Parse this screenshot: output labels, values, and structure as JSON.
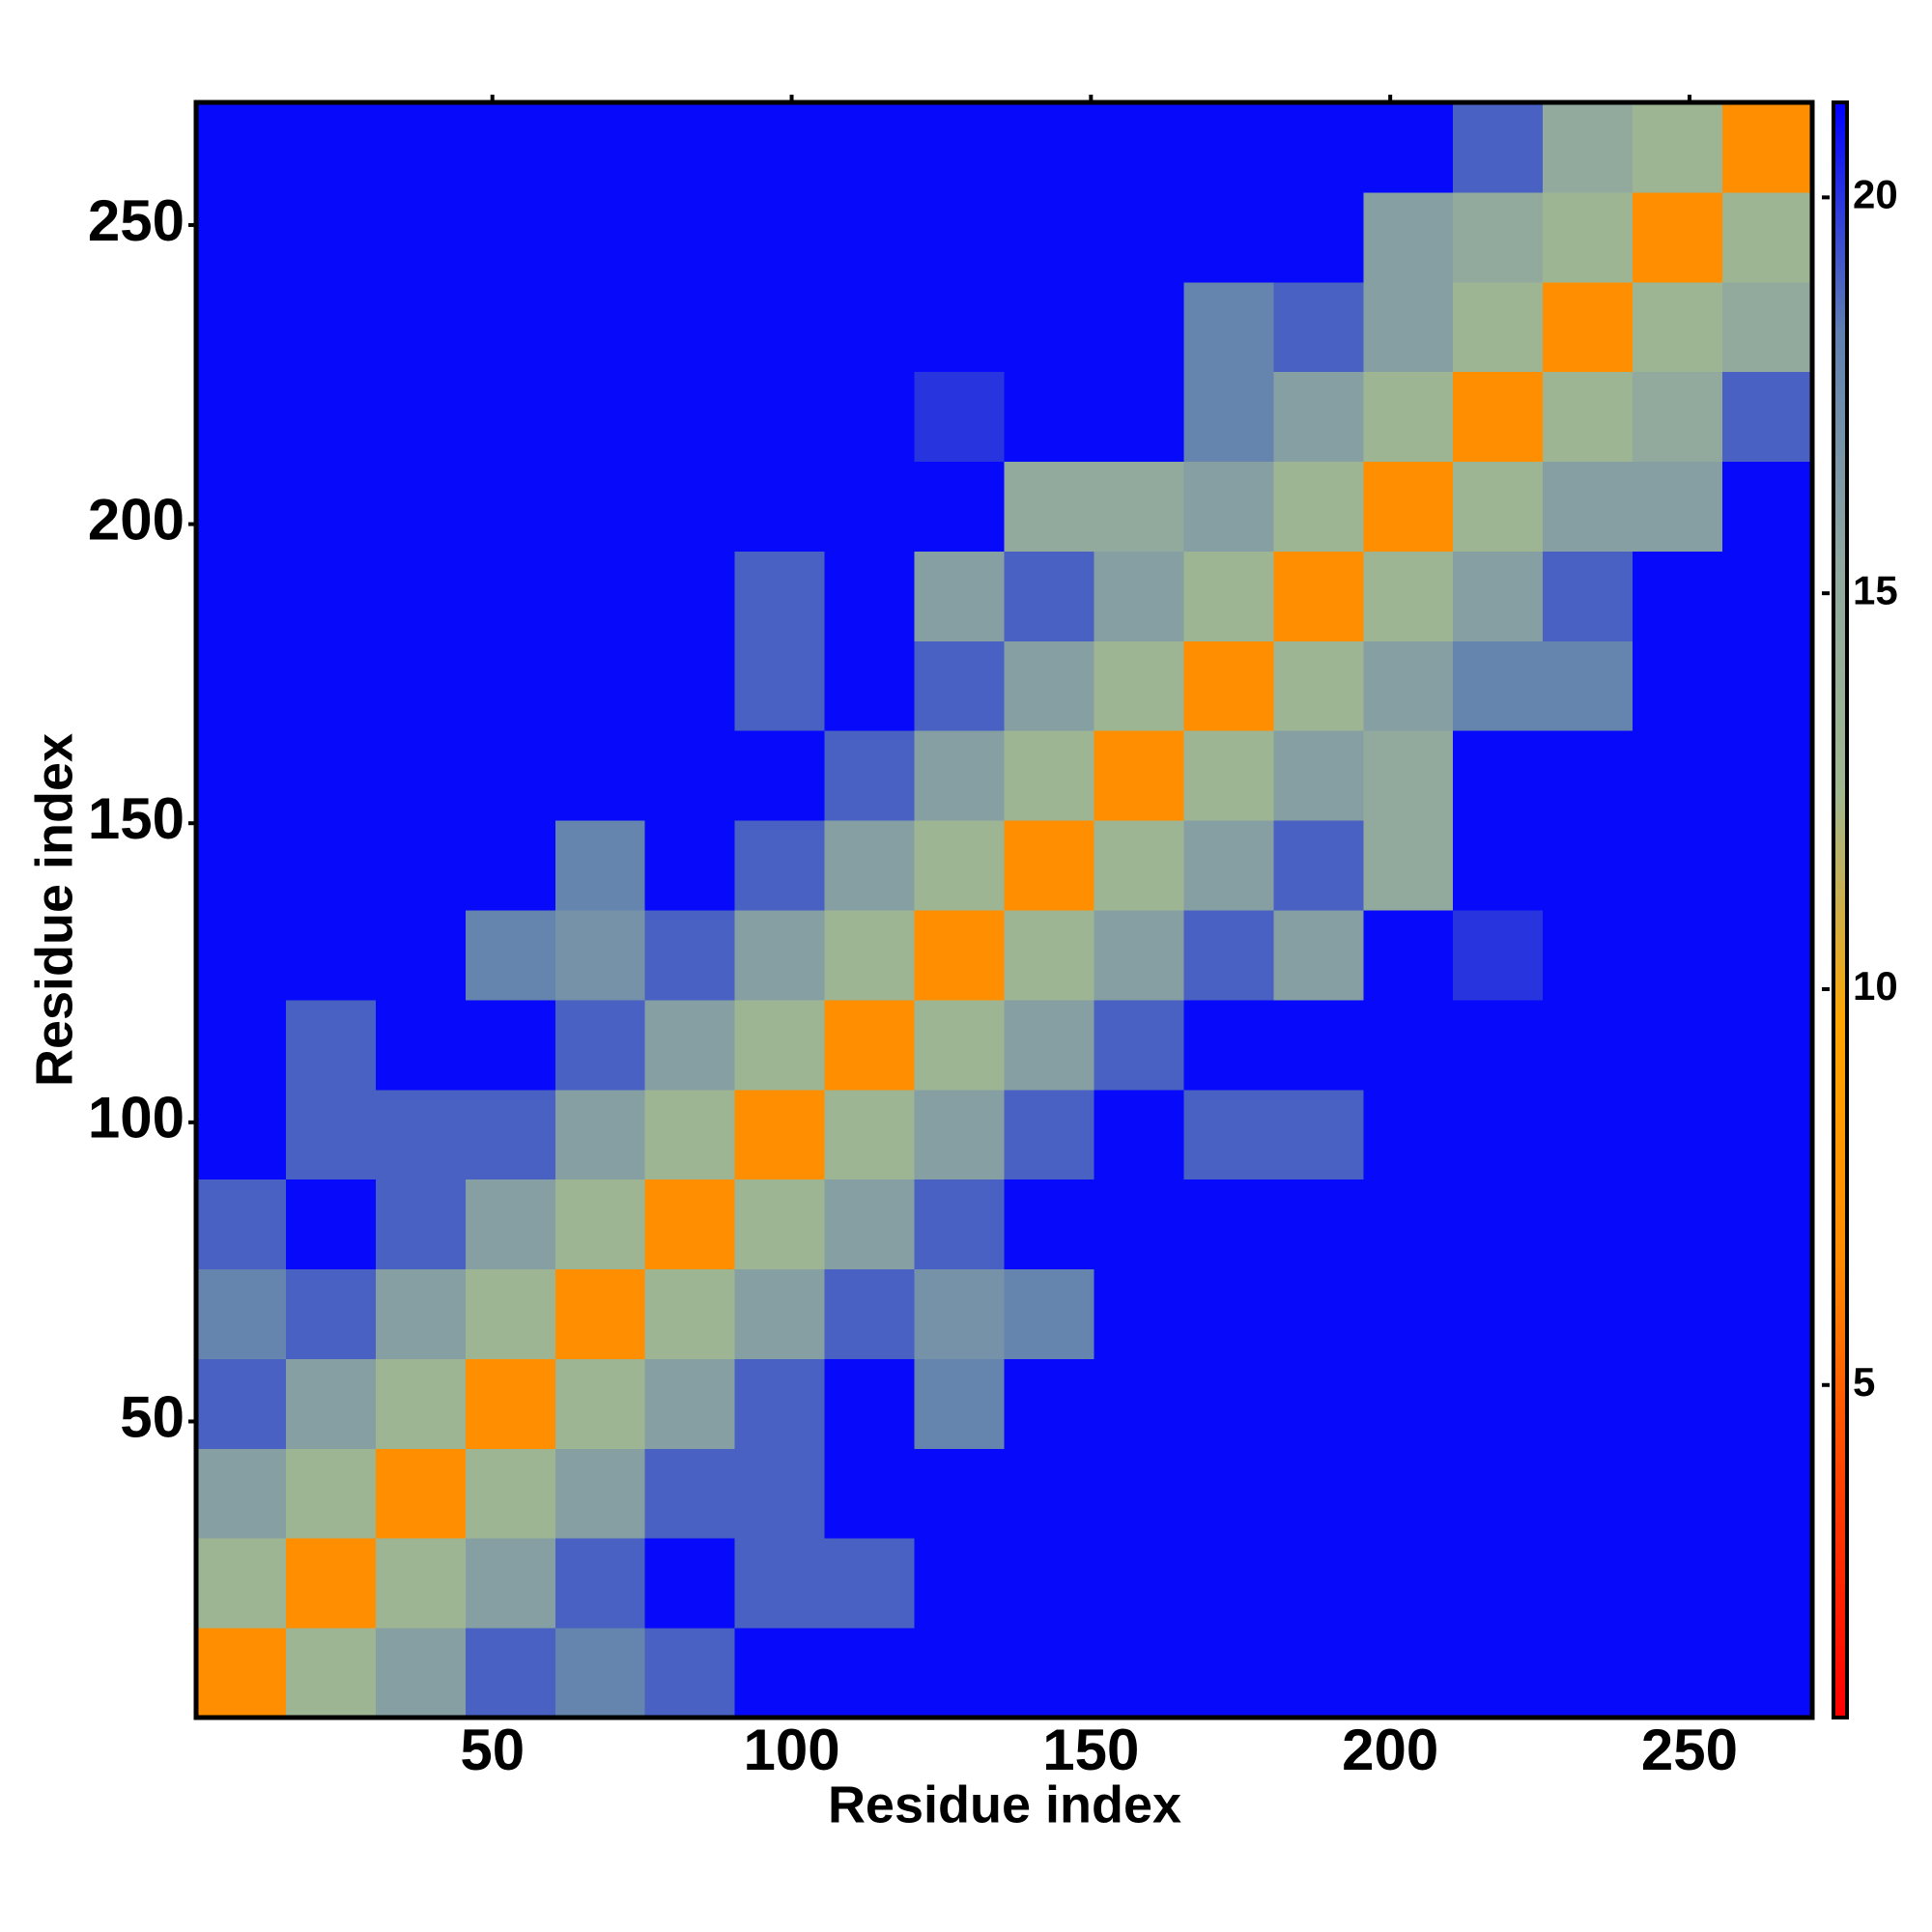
{
  "chart_data": {
    "type": "heatmap",
    "xlabel": "Residue index",
    "ylabel": "Residue index",
    "xbins": [
      0.5,
      15.5,
      30.5,
      45.5,
      60.5,
      75.5,
      90.5,
      105.5,
      120.5,
      135.5,
      150.5,
      165.5,
      180.5,
      195.5,
      210.5,
      225.5,
      240.5,
      255.5,
      270.5
    ],
    "ybins": [
      0.5,
      15.5,
      30.5,
      45.5,
      60.5,
      75.5,
      90.5,
      105.5,
      120.5,
      135.5,
      150.5,
      165.5,
      180.5,
      195.5,
      210.5,
      225.5,
      240.5,
      255.5,
      270.5
    ],
    "xlim": [
      0.5,
      270.5
    ],
    "ylim": [
      0.5,
      270.5
    ],
    "xticks": [
      50,
      100,
      150,
      200,
      250
    ],
    "yticks": [
      50,
      100,
      150,
      200,
      250
    ],
    "clim": [
      0.8,
      21.2
    ],
    "cticks": [
      5,
      10,
      15,
      20
    ],
    "colors": [
      "#ff0000",
      "#ff4000",
      "#ff8c00",
      "#ffa500",
      "#a0b890",
      "#90a8a0",
      "#6080b0",
      "#0000ff"
    ],
    "z": [
      [
        7,
        13,
        16,
        19,
        18,
        19,
        21,
        21,
        21,
        21,
        21,
        21,
        21,
        21,
        21,
        21,
        21,
        21
      ],
      [
        13,
        7,
        13,
        16,
        19,
        21,
        19,
        19,
        21,
        21,
        21,
        21,
        21,
        21,
        21,
        21,
        21,
        21
      ],
      [
        16,
        13,
        7,
        13,
        16,
        19,
        19,
        21,
        21,
        21,
        21,
        21,
        21,
        21,
        21,
        21,
        21,
        21
      ],
      [
        19,
        16,
        13,
        7,
        13,
        16,
        19,
        21,
        18,
        21,
        21,
        21,
        21,
        21,
        21,
        21,
        21,
        21
      ],
      [
        18,
        19,
        16,
        13,
        7,
        13,
        16,
        19,
        17,
        18,
        21,
        21,
        21,
        21,
        21,
        21,
        21,
        21
      ],
      [
        19,
        21,
        19,
        16,
        13,
        7,
        13,
        16,
        19,
        21,
        21,
        21,
        21,
        21,
        21,
        21,
        21,
        21
      ],
      [
        21,
        19,
        19,
        19,
        16,
        13,
        7,
        13,
        16,
        19,
        21,
        19,
        19,
        21,
        21,
        21,
        21,
        21
      ],
      [
        21,
        19,
        21,
        21,
        19,
        16,
        13,
        7,
        13,
        16,
        19,
        21,
        21,
        21,
        21,
        21,
        21,
        21
      ],
      [
        21,
        21,
        21,
        18,
        17,
        19,
        16,
        13,
        7,
        13,
        16,
        19,
        16,
        21,
        20,
        21,
        21,
        21
      ],
      [
        21,
        21,
        21,
        21,
        18,
        21,
        19,
        16,
        13,
        7,
        13,
        16,
        19,
        15,
        21,
        21,
        21,
        21
      ],
      [
        21,
        21,
        21,
        21,
        21,
        21,
        21,
        19,
        16,
        13,
        7,
        13,
        16,
        15,
        21,
        21,
        21,
        21
      ],
      [
        21,
        21,
        21,
        21,
        21,
        21,
        19,
        21,
        19,
        16,
        13,
        7,
        13,
        16,
        18,
        18,
        21,
        21
      ],
      [
        21,
        21,
        21,
        21,
        21,
        21,
        19,
        21,
        16,
        19,
        16,
        13,
        7,
        13,
        16,
        19,
        21,
        21
      ],
      [
        21,
        21,
        21,
        21,
        21,
        21,
        21,
        21,
        21,
        15,
        15,
        16,
        13,
        7,
        13,
        16,
        16,
        21
      ],
      [
        21,
        21,
        21,
        21,
        21,
        21,
        21,
        21,
        20,
        21,
        21,
        18,
        16,
        13,
        7,
        13,
        15,
        19
      ],
      [
        21,
        21,
        21,
        21,
        21,
        21,
        21,
        21,
        21,
        21,
        21,
        18,
        19,
        16,
        13,
        7,
        13,
        15
      ],
      [
        21,
        21,
        21,
        21,
        21,
        21,
        21,
        21,
        21,
        21,
        21,
        21,
        21,
        16,
        15,
        13,
        7,
        13
      ],
      [
        21,
        21,
        21,
        21,
        21,
        21,
        21,
        21,
        21,
        21,
        21,
        21,
        21,
        21,
        19,
        15,
        13,
        7
      ]
    ]
  }
}
